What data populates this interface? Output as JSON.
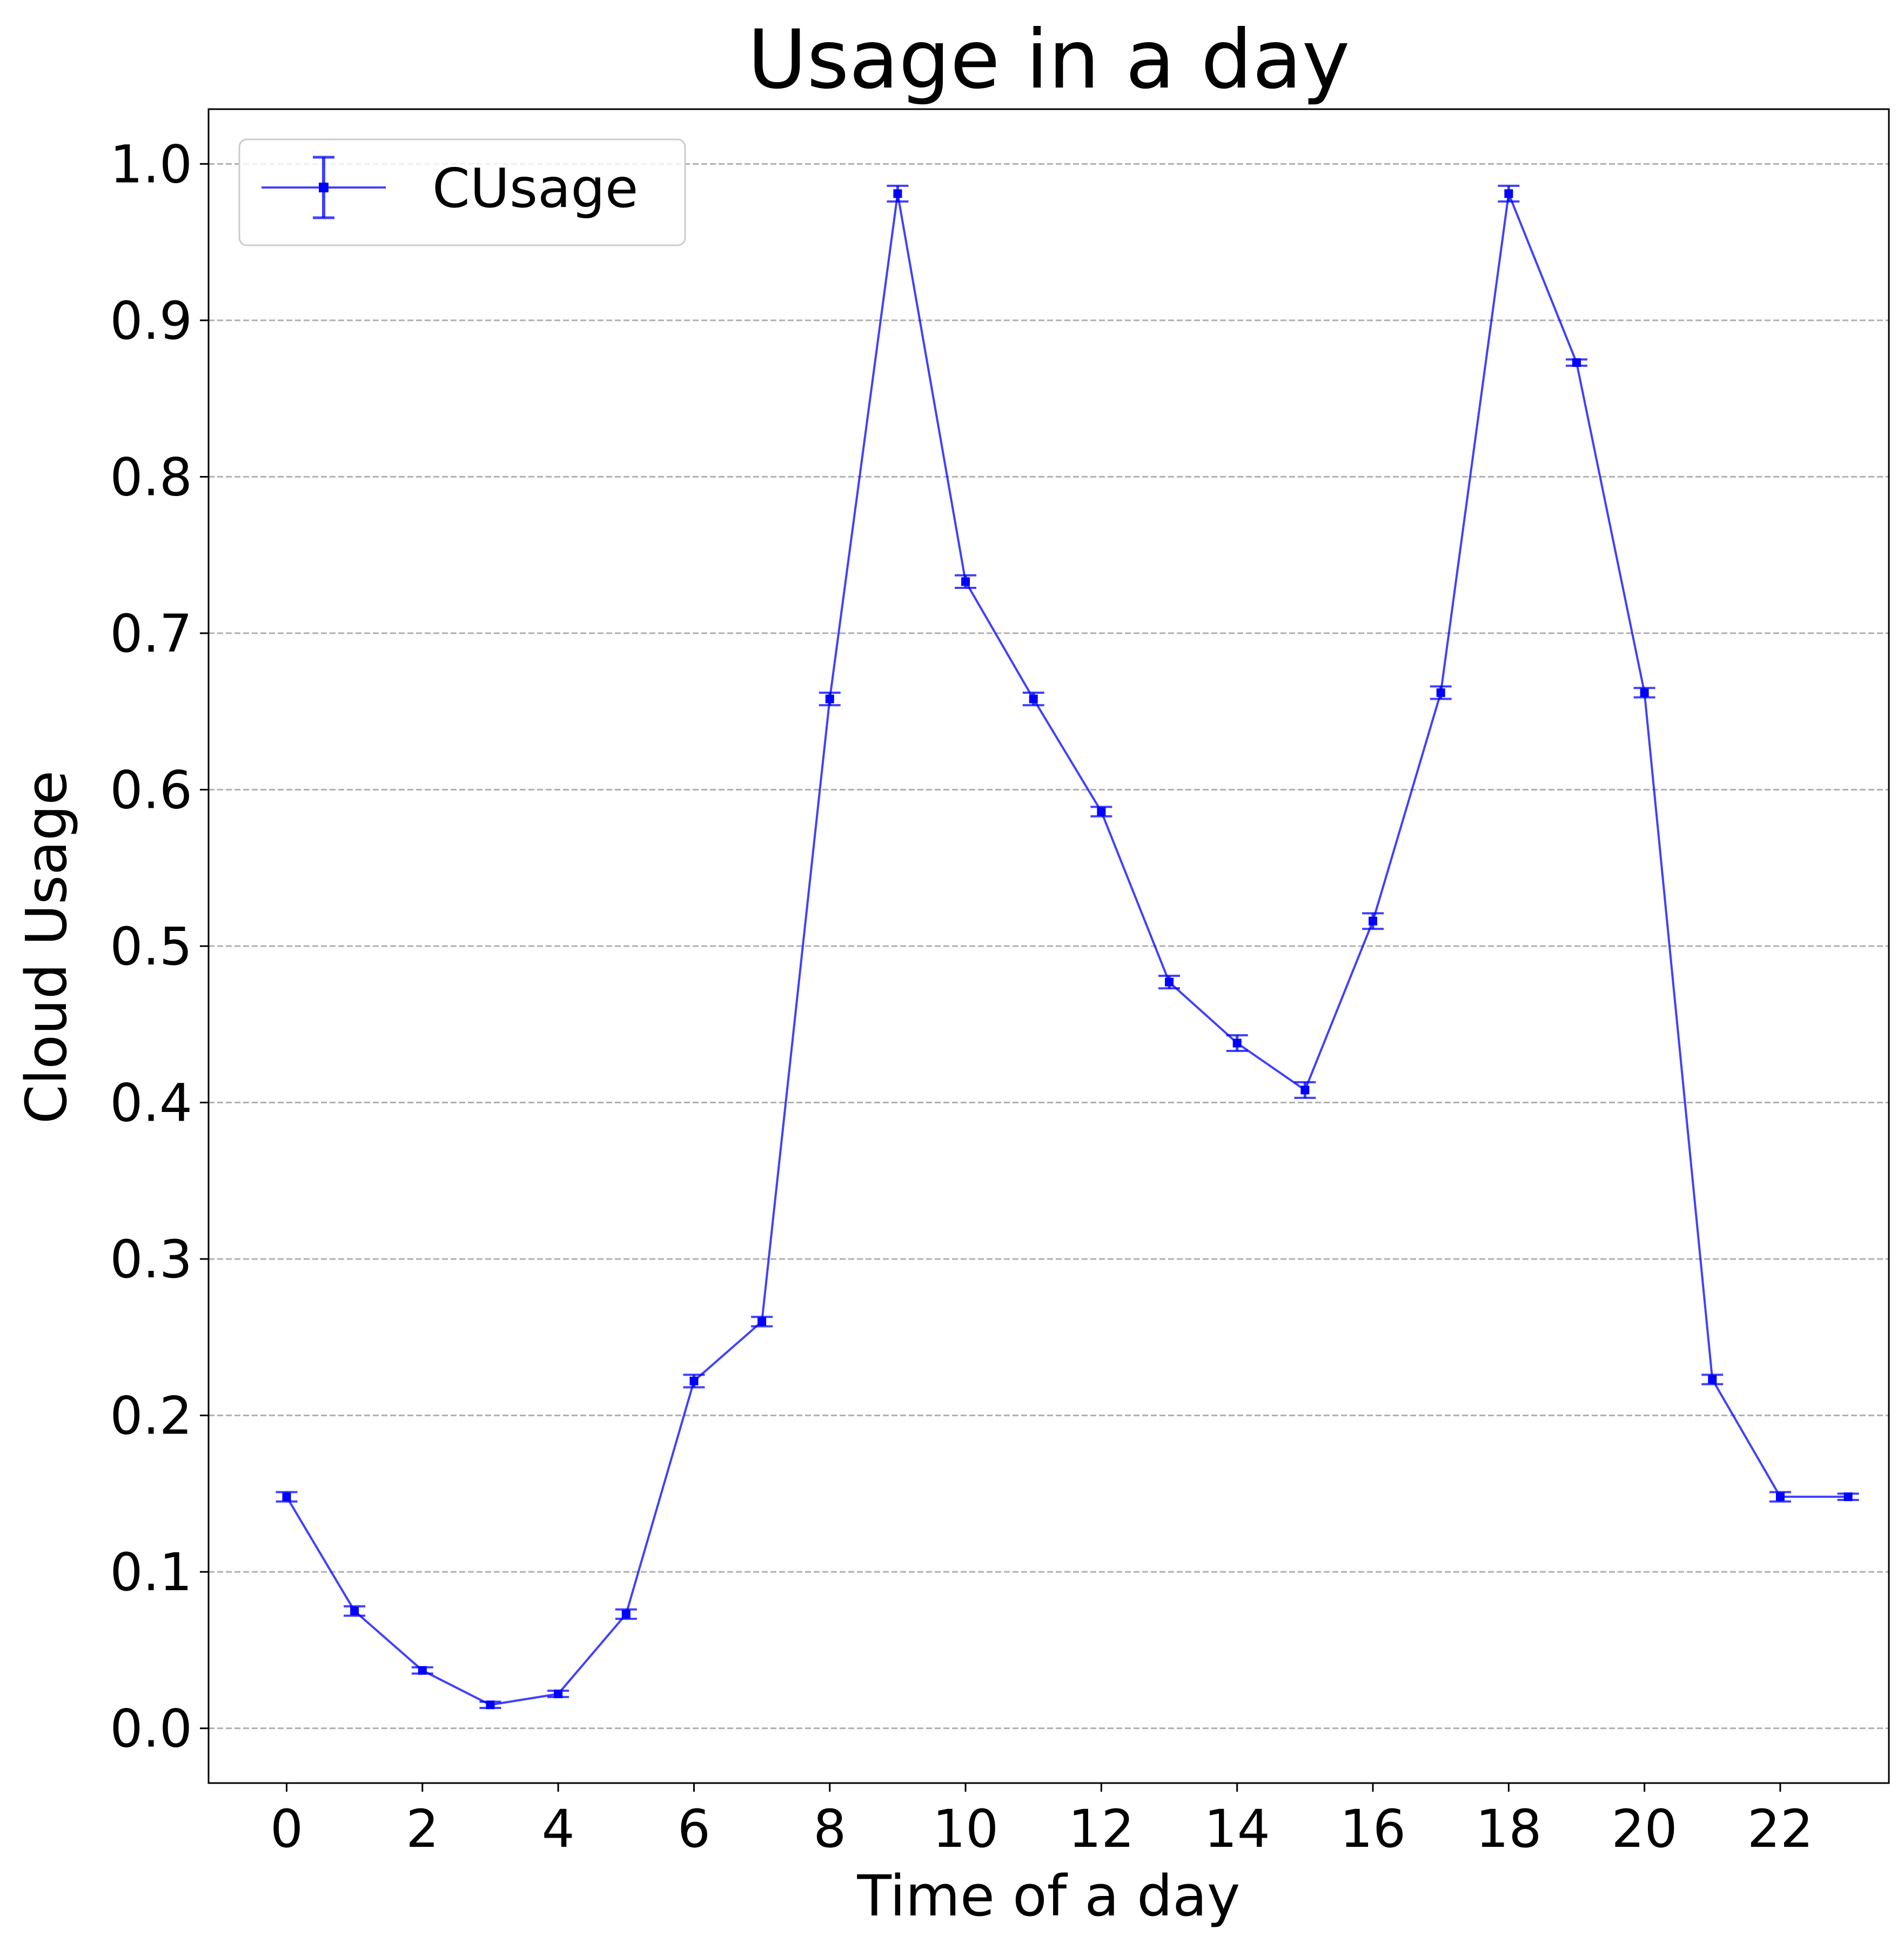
{
  "chart_data": {
    "type": "line",
    "title": "Usage in a day",
    "xlabel": "Time of a day",
    "ylabel": "Cloud Usage",
    "xlim": [
      -1.15,
      23.6
    ],
    "ylim": [
      -0.035,
      1.035
    ],
    "x_ticks": [
      0,
      2,
      4,
      6,
      8,
      10,
      12,
      14,
      16,
      18,
      20,
      22
    ],
    "y_ticks": [
      0.0,
      0.1,
      0.2,
      0.3,
      0.4,
      0.5,
      0.6,
      0.7,
      0.8,
      0.9,
      1.0
    ],
    "x_tick_labels": [
      "0",
      "2",
      "4",
      "6",
      "8",
      "10",
      "12",
      "14",
      "16",
      "18",
      "20",
      "22"
    ],
    "y_tick_labels": [
      "0.0",
      "0.1",
      "0.2",
      "0.3",
      "0.4",
      "0.5",
      "0.6",
      "0.7",
      "0.8",
      "0.9",
      "1.0"
    ],
    "grid": {
      "axis": "y",
      "style": "dashed",
      "color": "#b0b0b0"
    },
    "legend_position": "top-left",
    "series": [
      {
        "name": "CUsage",
        "color": "#0000ff",
        "x": [
          0,
          1,
          2,
          3,
          4,
          5,
          6,
          7,
          8,
          9,
          10,
          11,
          12,
          13,
          14,
          15,
          16,
          17,
          18,
          19,
          20,
          21,
          22,
          23
        ],
        "y": [
          0.148,
          0.075,
          0.037,
          0.015,
          0.022,
          0.073,
          0.222,
          0.26,
          0.658,
          0.981,
          0.733,
          0.658,
          0.586,
          0.477,
          0.438,
          0.408,
          0.516,
          0.662,
          0.981,
          0.873,
          0.662,
          0.223,
          0.148,
          0.148
        ],
        "yerr": [
          0.003,
          0.003,
          0.002,
          0.002,
          0.002,
          0.003,
          0.004,
          0.003,
          0.004,
          0.005,
          0.004,
          0.004,
          0.003,
          0.004,
          0.005,
          0.005,
          0.005,
          0.004,
          0.005,
          0.002,
          0.003,
          0.003,
          0.003,
          0.002
        ]
      }
    ]
  }
}
